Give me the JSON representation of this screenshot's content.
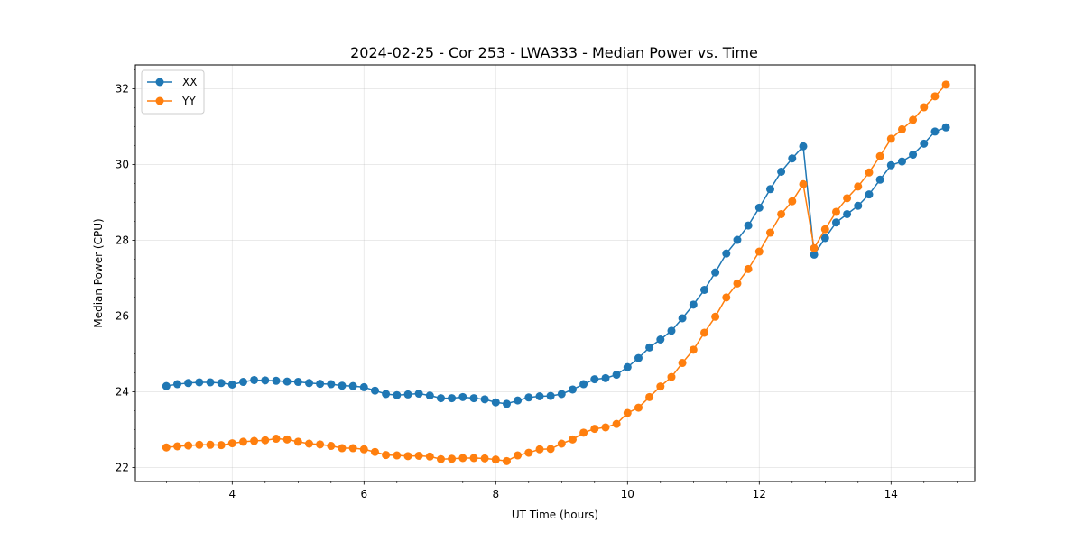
{
  "chart_data": {
    "type": "line",
    "title": "2024-02-25 - Cor 253 - LWA333 - Median Power vs. Time",
    "xlabel": "UT Time (hours)",
    "ylabel": "Median Power (CPU)",
    "xlim": [
      2.53,
      15.27
    ],
    "ylim": [
      21.63,
      32.63
    ],
    "xticks": [
      4,
      6,
      8,
      10,
      12,
      14
    ],
    "xtick_labels": [
      "4",
      "6",
      "8",
      "10",
      "12",
      "14"
    ],
    "yticks": [
      22,
      24,
      26,
      28,
      30,
      32
    ],
    "ytick_labels": [
      "22",
      "24",
      "26",
      "28",
      "30",
      "32"
    ],
    "grid": true,
    "legend_position": "top-left",
    "x": [
      3.0,
      3.167,
      3.333,
      3.5,
      3.667,
      3.833,
      4.0,
      4.167,
      4.333,
      4.5,
      4.667,
      4.833,
      5.0,
      5.167,
      5.333,
      5.5,
      5.667,
      5.833,
      6.0,
      6.167,
      6.333,
      6.5,
      6.667,
      6.833,
      7.0,
      7.167,
      7.333,
      7.5,
      7.667,
      7.833,
      8.0,
      8.167,
      8.333,
      8.5,
      8.667,
      8.833,
      9.0,
      9.167,
      9.333,
      9.5,
      9.667,
      9.833,
      10.0,
      10.167,
      10.333,
      10.5,
      10.667,
      10.833,
      11.0,
      11.167,
      11.333,
      11.5,
      11.667,
      11.833,
      12.0,
      12.167,
      12.333,
      12.5,
      12.667,
      12.833,
      13.0,
      13.167,
      13.333,
      13.5,
      13.667,
      13.833,
      14.0,
      14.167,
      14.333,
      14.5,
      14.667,
      14.833
    ],
    "series": [
      {
        "name": "XX",
        "color": "#1f77b4",
        "values": [
          24.15,
          24.2,
          24.23,
          24.25,
          24.25,
          24.23,
          24.19,
          24.26,
          24.31,
          24.3,
          24.29,
          24.27,
          24.26,
          24.23,
          24.21,
          24.2,
          24.16,
          24.15,
          24.12,
          24.03,
          23.94,
          23.91,
          23.93,
          23.95,
          23.9,
          23.83,
          23.83,
          23.86,
          23.83,
          23.8,
          23.72,
          23.68,
          23.77,
          23.85,
          23.88,
          23.89,
          23.94,
          24.06,
          24.2,
          24.33,
          24.36,
          24.45,
          24.65,
          24.89,
          25.17,
          25.38,
          25.61,
          25.94,
          26.3,
          26.69,
          27.15,
          27.65,
          28.01,
          28.39,
          28.86,
          29.35,
          29.81,
          30.16,
          30.48,
          27.62,
          28.06,
          28.47,
          28.69,
          28.91,
          29.21,
          29.6,
          29.98,
          30.08,
          30.26,
          30.55,
          30.87,
          30.98
        ]
      },
      {
        "name": "YY",
        "color": "#ff7f0e",
        "values": [
          22.53,
          22.56,
          22.58,
          22.6,
          22.6,
          22.59,
          22.64,
          22.68,
          22.7,
          22.72,
          22.76,
          22.74,
          22.68,
          22.63,
          22.61,
          22.57,
          22.51,
          22.51,
          22.48,
          22.41,
          22.33,
          22.32,
          22.3,
          22.31,
          22.29,
          22.22,
          22.23,
          22.25,
          22.25,
          22.24,
          22.21,
          22.17,
          22.32,
          22.39,
          22.48,
          22.49,
          22.63,
          22.74,
          22.92,
          23.02,
          23.06,
          23.15,
          23.44,
          23.58,
          23.86,
          24.14,
          24.39,
          24.76,
          25.11,
          25.56,
          25.98,
          26.49,
          26.86,
          27.24,
          27.7,
          28.2,
          28.69,
          29.03,
          29.48,
          27.79,
          28.29,
          28.75,
          29.11,
          29.42,
          29.79,
          30.22,
          30.68,
          30.93,
          31.18,
          31.51,
          31.8,
          32.11
        ]
      }
    ]
  }
}
